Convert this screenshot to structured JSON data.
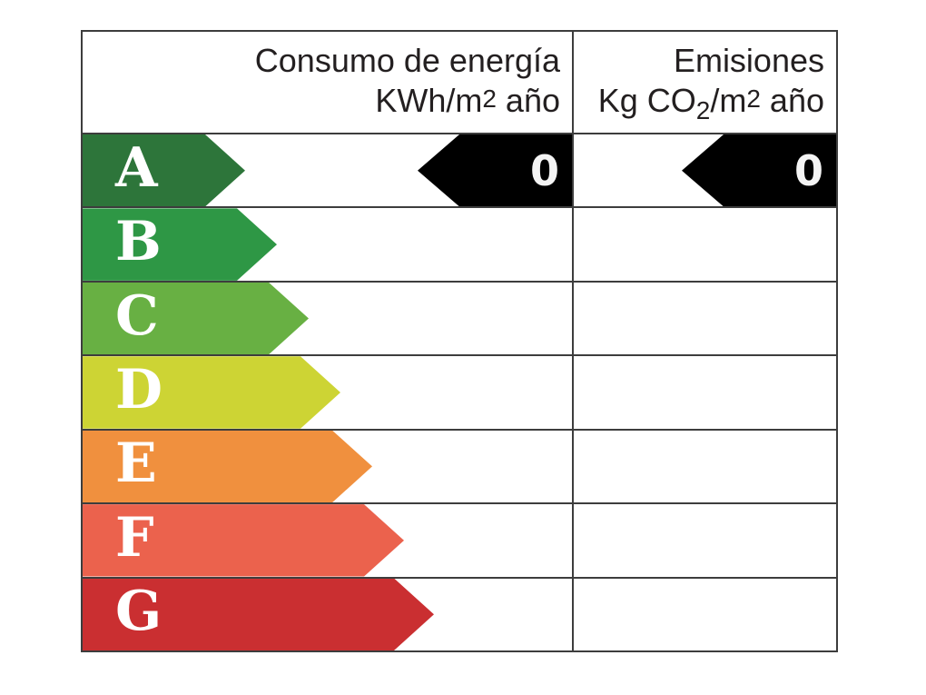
{
  "chart_data": {
    "type": "table",
    "title": "Energy efficiency rating label",
    "columns": [
      {
        "header": "Consumo de energía KWh/m2 año"
      },
      {
        "header": "Emisiones Kg CO2/m2 año"
      }
    ],
    "categories": [
      "A",
      "B",
      "C",
      "D",
      "E",
      "F",
      "G"
    ],
    "rating_colors": [
      "#2d753a",
      "#2e9745",
      "#68b043",
      "#cdd434",
      "#f0903e",
      "#eb624d",
      "#ca2f31"
    ],
    "indicated_rating": "A",
    "consumption_value": 0,
    "emissions_value": 0,
    "legend_position": "none",
    "grid": true
  },
  "header": {
    "col1": {
      "line1": "Consumo de energía",
      "line2_pre": "KWh/m",
      "line2_exp": "2",
      "line2_post": " año"
    },
    "col2": {
      "line1": "Emisiones",
      "line2_pre": "Kg CO",
      "line2_sub": "2",
      "line2_mid": "/m",
      "line2_exp": "2",
      "line2_post": " año"
    }
  },
  "rows": [
    {
      "label": "A",
      "color": "#2d753a",
      "arrow_width": 179
    },
    {
      "label": "B",
      "color": "#2e9745",
      "arrow_width": 214
    },
    {
      "label": "C",
      "color": "#68b043",
      "arrow_width": 249
    },
    {
      "label": "D",
      "color": "#cdd434",
      "arrow_width": 284
    },
    {
      "label": "E",
      "color": "#f0903e",
      "arrow_width": 319
    },
    {
      "label": "F",
      "color": "#eb624d",
      "arrow_width": 354
    },
    {
      "label": "G",
      "color": "#ca2f31",
      "arrow_width": 387
    }
  ],
  "indicators": {
    "rating_row": "A",
    "consumption_value": "0",
    "emissions_value": "0",
    "arrow_color": "#000000",
    "value_color": "#f4f4f4",
    "indicator_width": 170
  },
  "style": {
    "border_color": "#3d3d3d",
    "header_text_color": "#231f20",
    "letter_color": "#ffffff",
    "background": "#ffffff"
  }
}
